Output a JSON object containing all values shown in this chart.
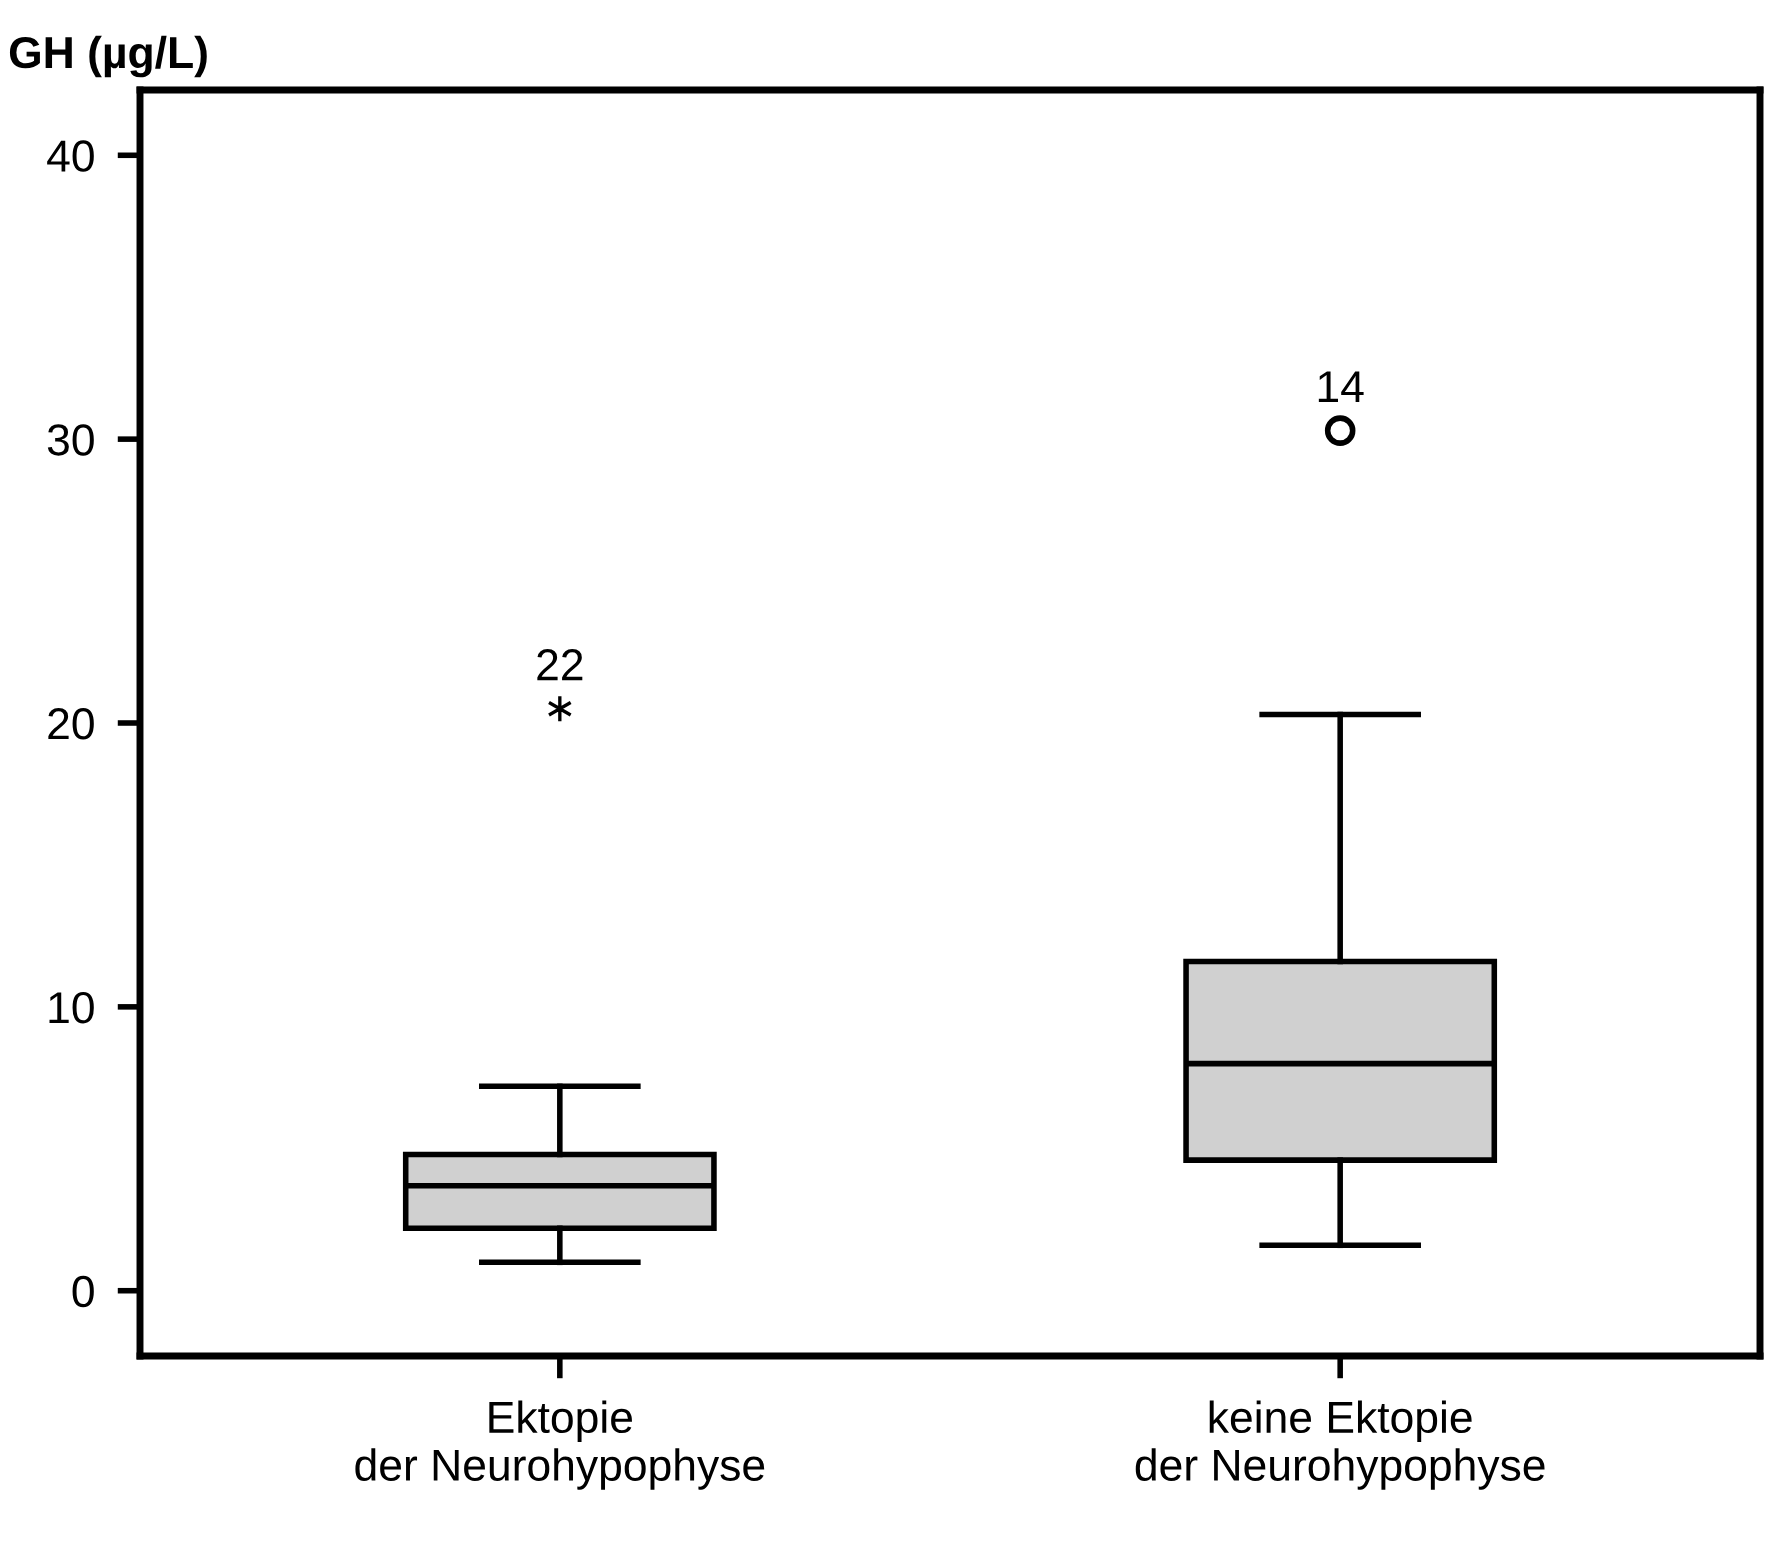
{
  "chart_data": {
    "type": "box",
    "ylabel": "GH (µg/L)",
    "categories": [
      "Ektopie\nder Neurohypophyse",
      "keine Ektopie\nder Neurohypophyse"
    ],
    "series": [
      {
        "color": "#d0d0d0",
        "marker": "star",
        "boxes": [
          {
            "low": 1.0,
            "q1": 2.2,
            "median": 3.7,
            "q3": 4.8,
            "high": 7.2,
            "outliers": [
              20.5
            ]
          },
          null
        ]
      },
      {
        "color": "#d0d0d0",
        "marker": "circle",
        "boxes": [
          null,
          {
            "low": 1.6,
            "q1": 4.6,
            "median": 8.0,
            "q3": 11.6,
            "high": 20.3,
            "outliers": [
              30.3
            ]
          }
        ]
      }
    ],
    "annotations": [
      "22",
      "14"
    ],
    "ylim": [
      -2.3,
      42.3
    ],
    "yticks": [
      0,
      10,
      20,
      30,
      40
    ],
    "grid": false,
    "legend": false
  }
}
